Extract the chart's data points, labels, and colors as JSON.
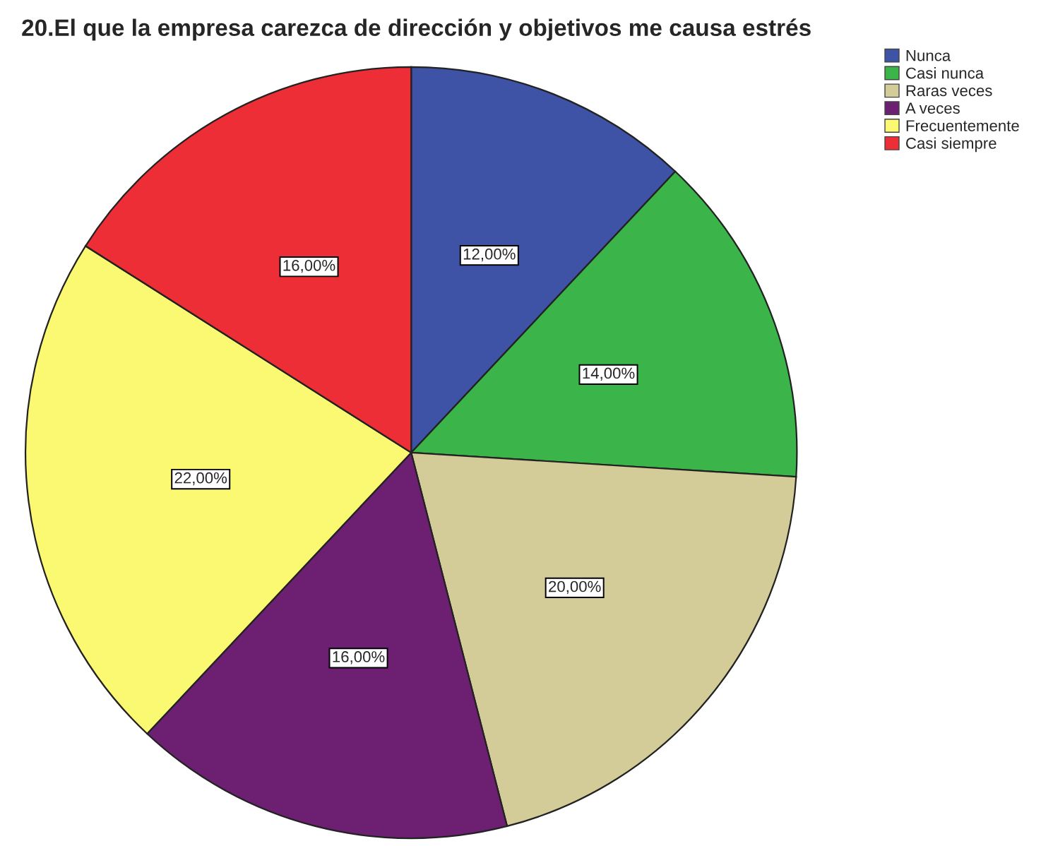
{
  "chart_data": {
    "type": "pie",
    "title": "20.El que la empresa carezca de dirección y objetivos me causa estrés",
    "categories": [
      "Nunca",
      "Casi nunca",
      "Raras veces",
      "A veces",
      "Frecuentemente",
      "Casi siempre"
    ],
    "values": [
      12,
      14,
      20,
      16,
      22,
      16
    ],
    "value_labels": [
      "12,00%",
      "14,00%",
      "20,00%",
      "16,00%",
      "22,00%",
      "16,00%"
    ],
    "colors": [
      "#3f53a6",
      "#3bb449",
      "#d3cc98",
      "#6d1f72",
      "#fbf872",
      "#ee2e37"
    ],
    "legend": "top right"
  }
}
